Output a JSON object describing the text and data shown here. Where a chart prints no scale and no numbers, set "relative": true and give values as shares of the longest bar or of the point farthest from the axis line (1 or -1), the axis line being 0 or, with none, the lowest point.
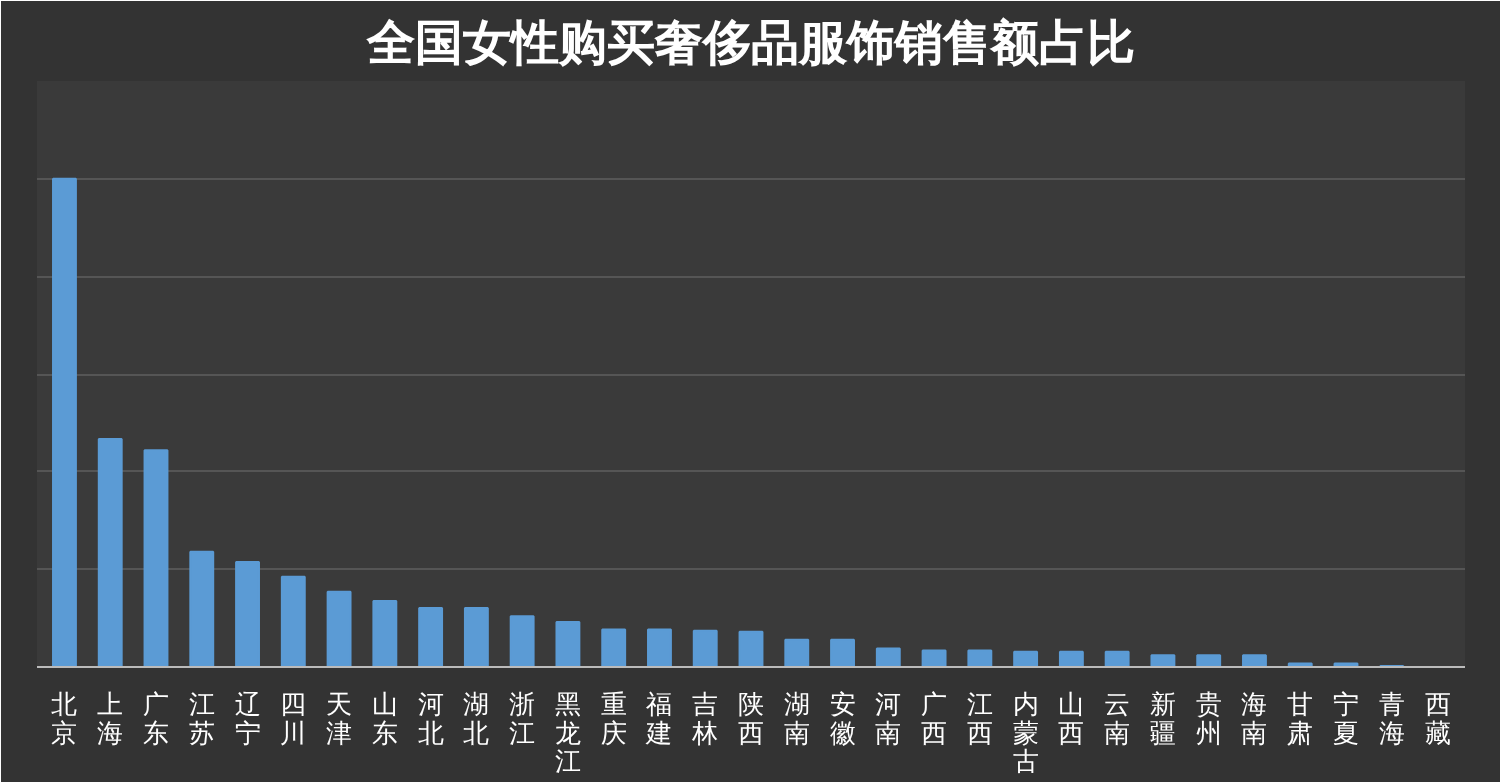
{
  "chart_data": {
    "type": "bar",
    "title": "全国女性购买奢侈品服饰销售额占比",
    "relative": true,
    "grid": "y",
    "color": "#5b9bd5",
    "categories": [
      "北京",
      "上海",
      "广东",
      "江苏",
      "辽宁",
      "四川",
      "天津",
      "山东",
      "河北",
      "湖北",
      "浙江",
      "黑龙江",
      "重庆",
      "福建",
      "吉林",
      "陕西",
      "湖南",
      "安徽",
      "河南",
      "广西",
      "江西",
      "内蒙古",
      "山西",
      "云南",
      "新疆",
      "贵州",
      "海南",
      "甘肃",
      "宁夏",
      "青海",
      "西藏"
    ],
    "values": [
      1,
      0.467,
      0.444,
      0.236,
      0.215,
      0.185,
      0.154,
      0.135,
      0.121,
      0.121,
      0.104,
      0.092,
      0.077,
      0.077,
      0.074,
      0.072,
      0.056,
      0.056,
      0.038,
      0.034,
      0.034,
      0.031,
      0.031,
      0.031,
      0.024,
      0.024,
      0.024,
      0.007,
      0.007,
      0.002,
      null
    ]
  }
}
